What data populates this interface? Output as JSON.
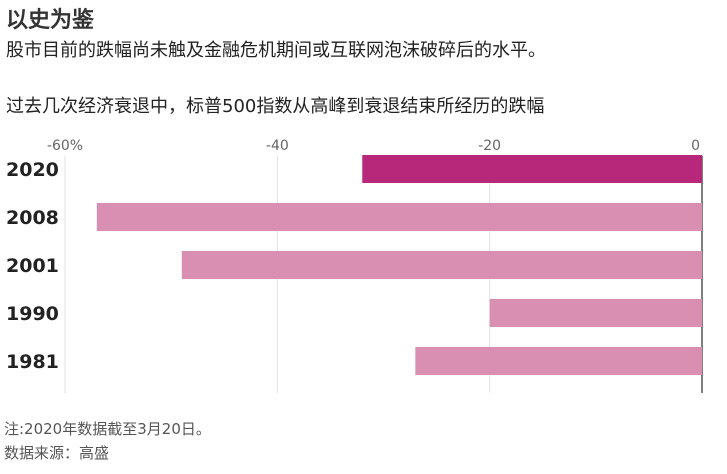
{
  "header": {
    "title": "以史为鉴",
    "subtitle": "股市目前的跌幅尚未触及金融危机期间或互联网泡沫破碎后的水平。",
    "chart_heading": "过去几次经济衰退中，标普500指数从高峰到衰退结束所经历的跌幅"
  },
  "footer": {
    "note": "注:2020年数据截至3月20日。",
    "source": "数据来源：高盛"
  },
  "chart_data": {
    "type": "bar",
    "orientation": "horizontal",
    "categories": [
      "2020",
      "2008",
      "2001",
      "1990",
      "1981"
    ],
    "values": [
      -32,
      -57,
      -49,
      -20,
      -27
    ],
    "colors": [
      "#b8287a",
      "#d98fb2",
      "#d98fb2",
      "#d98fb2",
      "#d98fb2"
    ],
    "xlim": [
      -60,
      0
    ],
    "xticks": [
      -60,
      -40,
      -20,
      0
    ],
    "xtick_labels": [
      "-60%",
      "-40",
      "-20",
      "0"
    ],
    "tick_position": "top",
    "grid": true
  }
}
